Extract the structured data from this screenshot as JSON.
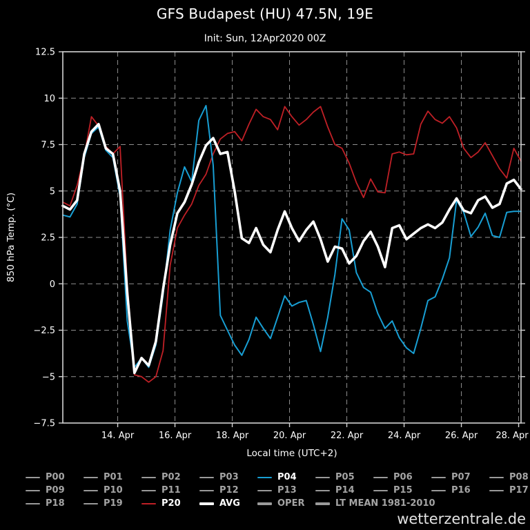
{
  "title": "GFS Budapest (HU) 47.5N, 19E",
  "subtitle": "Init: Sun, 12Apr2020 00Z",
  "watermark": "wetterzentrale.de",
  "colors": {
    "background": "#000000",
    "text": "#ffffff",
    "inactive_text": "#a4a4a4",
    "grid": "#8f8f8f",
    "frame": "#d4d4d4",
    "p04_blue": "#189fd4",
    "p20_red": "#c02026",
    "avg_white": "#ffffff",
    "member_gray": "#9a9a9a"
  },
  "chart_data": {
    "type": "line",
    "title": "GFS Budapest (HU) 47.5N, 19E",
    "subtitle": "Init: Sun, 12Apr2020 00Z",
    "xlabel": "Local time (UTC+2)",
    "ylabel": "850 hPa Temp. (°C)",
    "ylim": [
      -7.5,
      12.5
    ],
    "y_ticks": [
      12.5,
      10,
      7.5,
      5,
      2.5,
      0,
      -2.5,
      -5,
      -7.5
    ],
    "grid": true,
    "x_range_hours": [
      0,
      384
    ],
    "start_time": "12 Apr 2020 02:00 local",
    "time_step_hours": 6,
    "x_ticks": [
      {
        "hours": 46,
        "label": "14. Apr"
      },
      {
        "hours": 94,
        "label": "16. Apr"
      },
      {
        "hours": 142,
        "label": "18. Apr"
      },
      {
        "hours": 190,
        "label": "20. Apr"
      },
      {
        "hours": 238,
        "label": "22. Apr"
      },
      {
        "hours": 286,
        "label": "24. Apr"
      },
      {
        "hours": 334,
        "label": "26. Apr"
      },
      {
        "hours": 382,
        "label": "28. Apr"
      }
    ],
    "series": [
      {
        "name": "P20",
        "color": "#c02026",
        "width": 1.8,
        "values": [
          4.4,
          4.2,
          5.3,
          6.9,
          9.0,
          8.5,
          7.4,
          7.0,
          7.4,
          0.0,
          -4.9,
          -5.0,
          -5.3,
          -5.0,
          -3.6,
          1.0,
          3.0,
          3.7,
          4.3,
          5.3,
          5.9,
          7.0,
          7.8,
          8.1,
          8.2,
          7.7,
          8.6,
          9.4,
          9.0,
          8.85,
          8.3,
          9.55,
          9.0,
          8.55,
          8.85,
          9.25,
          9.55,
          8.45,
          7.5,
          7.3,
          6.5,
          5.45,
          4.65,
          5.65,
          4.95,
          4.9,
          7.0,
          7.1,
          6.95,
          7.0,
          8.6,
          9.3,
          8.85,
          8.65,
          9.0,
          8.4,
          7.3,
          6.8,
          7.1,
          7.6,
          6.9,
          6.2,
          5.7,
          7.3,
          6.6
        ]
      },
      {
        "name": "P04",
        "color": "#189fd4",
        "width": 2,
        "values": [
          3.7,
          3.6,
          4.3,
          6.8,
          8.1,
          8.45,
          7.2,
          6.8,
          4.7,
          -2.0,
          -4.5,
          -4.0,
          -4.5,
          -3.3,
          -0.6,
          2.9,
          4.9,
          6.3,
          5.5,
          8.8,
          9.6,
          6.4,
          -1.7,
          -2.5,
          -3.3,
          -3.85,
          -3.0,
          -1.8,
          -2.4,
          -2.95,
          -1.8,
          -0.65,
          -1.2,
          -1.0,
          -0.9,
          -2.2,
          -3.65,
          -1.8,
          0.5,
          3.5,
          2.9,
          0.6,
          -0.2,
          -0.45,
          -1.6,
          -2.4,
          -2.0,
          -2.9,
          -3.45,
          -3.75,
          -2.4,
          -0.9,
          -0.7,
          0.25,
          1.4,
          4.5,
          3.85,
          2.55,
          3.05,
          3.8,
          2.6,
          2.5,
          3.85,
          3.9,
          3.9
        ]
      },
      {
        "name": "AVG",
        "color": "#ffffff",
        "width": 3.6,
        "values": [
          4.2,
          4.0,
          4.5,
          7.0,
          8.2,
          8.6,
          7.3,
          7.0,
          5.0,
          -0.5,
          -4.8,
          -4.0,
          -4.4,
          -3.1,
          -0.3,
          2.1,
          3.8,
          4.4,
          5.35,
          6.55,
          7.45,
          7.85,
          7.0,
          7.1,
          5.0,
          2.45,
          2.2,
          3.0,
          2.1,
          1.7,
          2.9,
          3.9,
          3.0,
          2.3,
          2.9,
          3.35,
          2.4,
          1.2,
          2.0,
          1.9,
          1.1,
          1.5,
          2.3,
          2.8,
          2.0,
          0.9,
          3.0,
          3.15,
          2.4,
          2.7,
          3.0,
          3.2,
          3.0,
          3.3,
          4.0,
          4.6,
          3.95,
          3.8,
          4.5,
          4.7,
          4.1,
          4.3,
          5.4,
          5.6,
          5.1
        ]
      }
    ]
  },
  "legend": {
    "rows": [
      [
        {
          "label": "P00",
          "color": "#9a9a9a",
          "thick": false,
          "active": false
        },
        {
          "label": "P01",
          "color": "#9a9a9a",
          "thick": false,
          "active": false
        },
        {
          "label": "P02",
          "color": "#9a9a9a",
          "thick": false,
          "active": false
        },
        {
          "label": "P03",
          "color": "#9a9a9a",
          "thick": false,
          "active": false
        },
        {
          "label": "P04",
          "color": "#189fd4",
          "thick": false,
          "active": true
        },
        {
          "label": "P05",
          "color": "#9a9a9a",
          "thick": false,
          "active": false
        },
        {
          "label": "P06",
          "color": "#9a9a9a",
          "thick": false,
          "active": false
        },
        {
          "label": "P07",
          "color": "#9a9a9a",
          "thick": false,
          "active": false
        },
        {
          "label": "P08",
          "color": "#9a9a9a",
          "thick": false,
          "active": false
        }
      ],
      [
        {
          "label": "P09",
          "color": "#9a9a9a",
          "thick": false,
          "active": false
        },
        {
          "label": "P10",
          "color": "#9a9a9a",
          "thick": false,
          "active": false
        },
        {
          "label": "P11",
          "color": "#9a9a9a",
          "thick": false,
          "active": false
        },
        {
          "label": "P12",
          "color": "#9a9a9a",
          "thick": false,
          "active": false
        },
        {
          "label": "P13",
          "color": "#9a9a9a",
          "thick": false,
          "active": false
        },
        {
          "label": "P14",
          "color": "#9a9a9a",
          "thick": false,
          "active": false
        },
        {
          "label": "P15",
          "color": "#9a9a9a",
          "thick": false,
          "active": false
        },
        {
          "label": "P16",
          "color": "#9a9a9a",
          "thick": false,
          "active": false
        },
        {
          "label": "P17",
          "color": "#9a9a9a",
          "thick": false,
          "active": false
        }
      ],
      [
        {
          "label": "P18",
          "color": "#9a9a9a",
          "thick": false,
          "active": false
        },
        {
          "label": "P19",
          "color": "#9a9a9a",
          "thick": false,
          "active": false
        },
        {
          "label": "P20",
          "color": "#c02026",
          "thick": false,
          "active": true
        },
        {
          "label": "AVG",
          "color": "#ffffff",
          "thick": true,
          "active": true
        },
        {
          "label": "OPER",
          "color": "#9a9a9a",
          "thick": true,
          "active": false
        },
        {
          "label": "LT MEAN 1981-2010",
          "color": "#9a9a9a",
          "thick": true,
          "active": false,
          "wide": true
        }
      ]
    ]
  }
}
